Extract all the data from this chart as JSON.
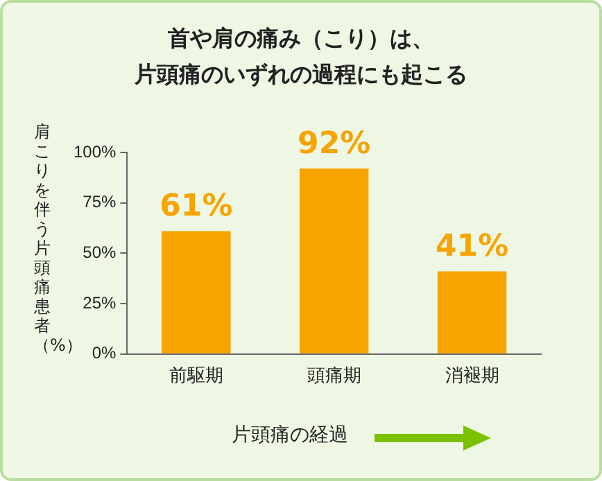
{
  "chart_data": {
    "type": "bar",
    "title": "首や肩の痛み（こり）は、",
    "subtitle": "片頭痛のいずれの過程にも起こる",
    "xlabel": "片頭痛の経過",
    "ylabel": "肩こりを伴う片頭痛患者（%）",
    "categories": [
      "前駆期",
      "頭痛期",
      "消褪期"
    ],
    "values": [
      61,
      92,
      41
    ],
    "value_labels": [
      "61%",
      "92%",
      "41%"
    ],
    "color": "#f7a300",
    "ylim": [
      0,
      100
    ],
    "yticks": [
      {
        "value": 0,
        "label": "0%"
      },
      {
        "value": 25,
        "label": "25%"
      },
      {
        "value": 50,
        "label": "50%"
      },
      {
        "value": 75,
        "label": "75%"
      },
      {
        "value": 100,
        "label": "100%"
      }
    ],
    "grid": false,
    "legend": false
  }
}
